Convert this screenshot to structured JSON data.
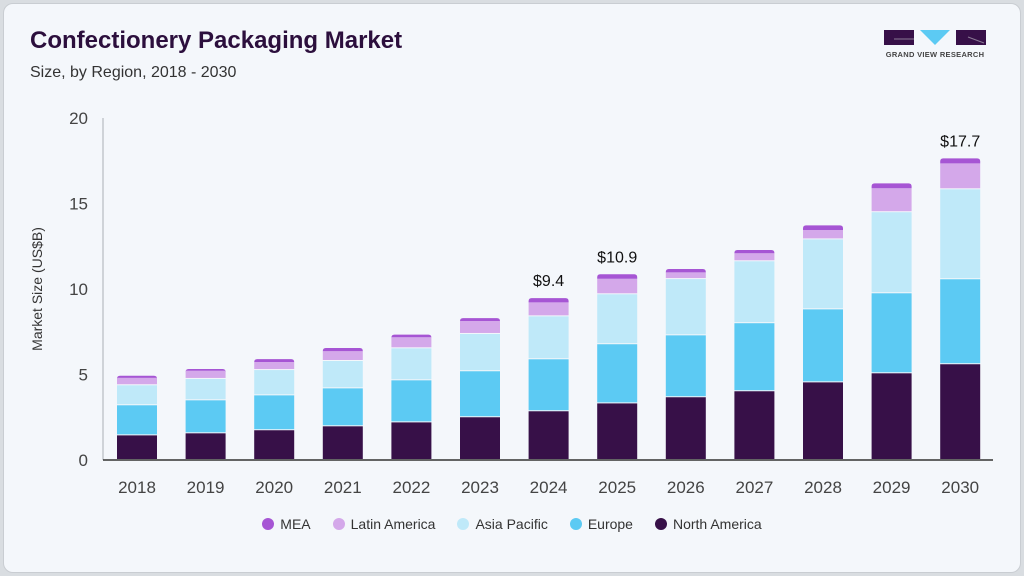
{
  "header": {
    "title": "Confectionery Packaging Market",
    "subtitle": "Size, by Region, 2018 - 2030"
  },
  "logo": {
    "text": "GRAND VIEW RESEARCH"
  },
  "chart_data": {
    "type": "bar",
    "stacked": true,
    "title": "Confectionery Packaging Market",
    "subtitle": "Size, by Region, 2018 - 2030",
    "ylabel": "Market Size (US$B)",
    "xlabel": "",
    "ylim": [
      0,
      20
    ],
    "yticks": [
      "0",
      "5",
      "10",
      "15",
      "20"
    ],
    "grid": false,
    "legend": "bottom",
    "categories": [
      "2018",
      "2019",
      "2020",
      "2021",
      "2022",
      "2023",
      "2024",
      "2025",
      "2026",
      "2027",
      "2028",
      "2029",
      "2030"
    ],
    "series": [
      {
        "name": "North America",
        "color": "#371048",
        "values": [
          1.44,
          1.56,
          1.74,
          1.97,
          2.2,
          2.5,
          2.85,
          3.31,
          3.67,
          4.02,
          4.54,
          5.07,
          5.6
        ]
      },
      {
        "name": "Europe",
        "color": "#5ccaf3",
        "values": [
          1.76,
          1.93,
          2.04,
          2.22,
          2.46,
          2.69,
          3.04,
          3.46,
          3.62,
          3.98,
          4.27,
          4.68,
          4.97
        ]
      },
      {
        "name": "Asia Pacific",
        "color": "#bfe9f9",
        "values": [
          1.17,
          1.25,
          1.48,
          1.6,
          1.87,
          2.18,
          2.51,
          2.92,
          3.29,
          3.62,
          4.09,
          4.74,
          5.26
        ]
      },
      {
        "name": "Latin America",
        "color": "#d4a8ea",
        "values": [
          0.43,
          0.48,
          0.47,
          0.58,
          0.65,
          0.76,
          0.82,
          0.91,
          0.39,
          0.47,
          0.55,
          1.4,
          1.52
        ]
      },
      {
        "name": "MEA",
        "color": "#a655d4",
        "values": [
          0.13,
          0.1,
          0.17,
          0.18,
          0.15,
          0.17,
          0.25,
          0.26,
          0.2,
          0.19,
          0.27,
          0.29,
          0.29
        ]
      }
    ],
    "annotations": [
      {
        "category": "2024",
        "label": "$9.4"
      },
      {
        "category": "2025",
        "label": "$10.9"
      },
      {
        "category": "2030",
        "label": "$17.7"
      }
    ],
    "legend_order": [
      "MEA",
      "Latin America",
      "Asia Pacific",
      "Europe",
      "North America"
    ]
  }
}
